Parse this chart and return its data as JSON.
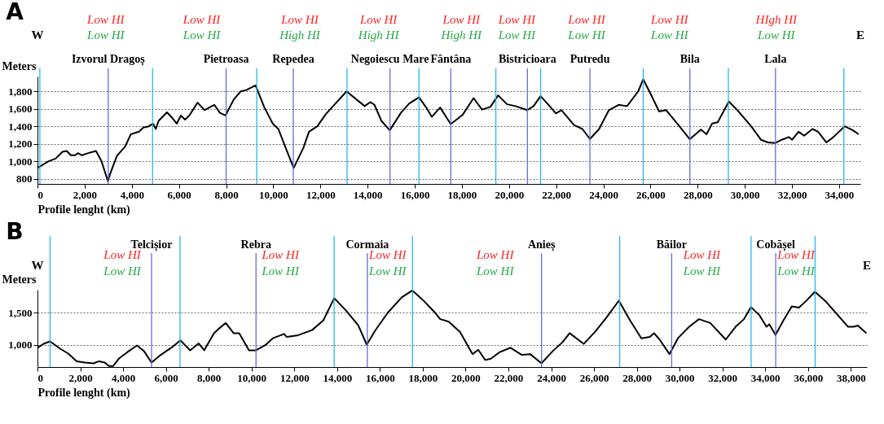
{
  "chart_data": [
    {
      "type": "line",
      "title": "A",
      "xlabel": "Profile lenght (km)",
      "ylabel": "Meters",
      "xlim": [
        0,
        34900
      ],
      "ylim": [
        740,
        1970
      ],
      "xticks": [
        0,
        {
          "value": 2000,
          "label": "2,000"
        },
        {
          "value": 4000,
          "label": "4,000"
        },
        {
          "value": 6000,
          "label": "6,000"
        },
        {
          "value": 8000,
          "label": "8,000"
        },
        {
          "value": 10000,
          "label": "10,000"
        },
        {
          "value": 12000,
          "label": "12,000"
        },
        {
          "value": 14000,
          "label": "14,000"
        },
        {
          "value": 16000,
          "label": "16,000"
        },
        {
          "value": 18000,
          "label": "18,000"
        },
        {
          "value": 20000,
          "label": "20,000"
        },
        {
          "value": 22000,
          "label": "22,000"
        },
        {
          "value": 24000,
          "label": "24,000"
        },
        {
          "value": 26000,
          "label": "26,000"
        },
        {
          "value": 28000,
          "label": "28,000"
        },
        {
          "value": 30000,
          "label": "30,000"
        },
        {
          "value": 32000,
          "label": "32,000"
        },
        {
          "value": 34000,
          "label": "34,000"
        }
      ],
      "yticks": [
        800,
        {
          "value": 1000,
          "label": "1,000"
        },
        {
          "value": 1200,
          "label": "1,200"
        },
        {
          "value": 1400,
          "label": "1,400"
        },
        {
          "value": 1600,
          "label": "1,600"
        },
        {
          "value": 1800,
          "label": "1,800"
        }
      ],
      "grid": "y",
      "x": [
        0,
        470,
        770,
        1060,
        1240,
        1417,
        1594,
        1713,
        1890,
        2067,
        2480,
        2716,
        2988,
        3070,
        3366,
        3720,
        3956,
        4310,
        4487,
        4723,
        4900,
        5019,
        5137,
        5491,
        5728,
        5905,
        6082,
        6260,
        6437,
        6791,
        7086,
        7500,
        7736,
        7972,
        8326,
        8622,
        8858,
        9248,
        9625,
        9980,
        10216,
        10570,
        10865,
        11279,
        11515,
        11870,
        12224,
        12696,
        13110,
        13524,
        13878,
        14114,
        14291,
        14587,
        14941,
        15414,
        15768,
        16181,
        16486,
        16722,
        17077,
        17527,
        18024,
        18497,
        18852,
        19207,
        19538,
        19916,
        20271,
        20768,
        21040,
        21336,
        21691,
        21987,
        22224,
        22756,
        23111,
        23430,
        23821,
        24235,
        24649,
        25004,
        25478,
        25690,
        25951,
        26365,
        26661,
        27134,
        27666,
        28139,
        28376,
        28612,
        28849,
        29322,
        29736,
        30268,
        30682,
        30978,
        31297,
        31569,
        31865,
        32007,
        32279,
        32516,
        32871,
        33107,
        33462,
        33758,
        34231,
        34586,
        34823
      ],
      "series": [
        {
          "color": "#000000",
          "values": [
            923,
            1000,
            1030,
            1108,
            1117,
            1068,
            1068,
            1092,
            1068,
            1086,
            1117,
            1000,
            770,
            846,
            1061,
            1169,
            1308,
            1338,
            1385,
            1400,
            1430,
            1369,
            1462,
            1560,
            1492,
            1430,
            1523,
            1477,
            1523,
            1671,
            1585,
            1646,
            1554,
            1523,
            1708,
            1800,
            1815,
            1868,
            1615,
            1430,
            1369,
            1123,
            923,
            1154,
            1338,
            1400,
            1538,
            1677,
            1800,
            1708,
            1631,
            1677,
            1646,
            1462,
            1354,
            1554,
            1662,
            1732,
            1615,
            1508,
            1615,
            1425,
            1529,
            1723,
            1591,
            1622,
            1754,
            1652,
            1631,
            1585,
            1631,
            1745,
            1640,
            1548,
            1585,
            1415,
            1369,
            1255,
            1369,
            1585,
            1646,
            1631,
            1800,
            1938,
            1800,
            1569,
            1585,
            1431,
            1252,
            1363,
            1308,
            1431,
            1446,
            1683,
            1569,
            1400,
            1246,
            1215,
            1209,
            1246,
            1277,
            1246,
            1338,
            1292,
            1369,
            1338,
            1215,
            1277,
            1400,
            1354,
            1308
          ]
        }
      ],
      "ref_lines": [
        {
          "axis": "x",
          "value": 100,
          "color": "#29b6e8"
        },
        {
          "axis": "x",
          "value": 4880,
          "color": "#29b6e8"
        },
        {
          "axis": "x",
          "value": 9300,
          "color": "#29b6e8"
        },
        {
          "axis": "x",
          "value": 13130,
          "color": "#29b6e8"
        },
        {
          "axis": "x",
          "value": 16180,
          "color": "#29b6e8"
        },
        {
          "axis": "x",
          "value": 19440,
          "color": "#29b6e8"
        },
        {
          "axis": "x",
          "value": 21340,
          "color": "#29b6e8"
        },
        {
          "axis": "x",
          "value": 25690,
          "color": "#29b6e8"
        },
        {
          "axis": "x",
          "value": 29300,
          "color": "#29b6e8"
        },
        {
          "axis": "x",
          "value": 34200,
          "color": "#29b6e8"
        },
        {
          "axis": "x",
          "value": 3000,
          "label": "Izvorul Dragoș",
          "color": "#6a6ad8"
        },
        {
          "axis": "x",
          "value": 8000,
          "label": "Pietroasa",
          "color": "#6a6ad8"
        },
        {
          "axis": "x",
          "value": 10850,
          "label": "Repedea",
          "color": "#6a6ad8"
        },
        {
          "axis": "x",
          "value": 14950,
          "label": "Negoiescu Mare",
          "color": "#6a6ad8"
        },
        {
          "axis": "x",
          "value": 17530,
          "label": "Fântâna",
          "color": "#6a6ad8"
        },
        {
          "axis": "x",
          "value": 20780,
          "label": "Bistricioara",
          "color": "#6a6ad8"
        },
        {
          "axis": "x",
          "value": 23430,
          "label": "Putredu",
          "color": "#6a6ad8"
        },
        {
          "axis": "x",
          "value": 27670,
          "label": "Bila",
          "color": "#6a6ad8"
        },
        {
          "axis": "x",
          "value": 31300,
          "label": "Lala",
          "color": "#6a6ad8"
        }
      ],
      "annotations": [
        "Low HI",
        "Low HI",
        "Low HI",
        "Low HI",
        "Low HI",
        "High HI",
        "Low HI",
        "High HI",
        "Low HI",
        "High HI",
        "Low HI",
        "Low HI",
        "Low HI",
        "Low HI",
        "Low HI",
        "Low HI",
        "HIgh HI",
        "Low HI",
        "W",
        "E"
      ]
    },
    {
      "type": "line",
      "title": "B",
      "xlabel": "Profile lenght (km)",
      "ylabel": "Meters",
      "xlim": [
        0,
        38750
      ],
      "ylim": [
        650,
        1860
      ],
      "xticks": [
        0,
        {
          "value": 2000,
          "label": "2,000"
        },
        {
          "value": 4000,
          "label": "4,000"
        },
        {
          "value": 6000,
          "label": "6,000"
        },
        {
          "value": 8000,
          "label": "8,000"
        },
        {
          "value": 10000,
          "label": "10,000"
        },
        {
          "value": 12000,
          "label": "12,000"
        },
        {
          "value": 14000,
          "label": "14,000"
        },
        {
          "value": 16000,
          "label": "16,000"
        },
        {
          "value": 18000,
          "label": "18,000"
        },
        {
          "value": 20000,
          "label": "20,000"
        },
        {
          "value": 22000,
          "label": "22,000"
        },
        {
          "value": 24000,
          "label": "24,000"
        },
        {
          "value": 26000,
          "label": "26,000"
        },
        {
          "value": 28000,
          "label": "28,000"
        },
        {
          "value": 30000,
          "label": "30,000"
        },
        {
          "value": 32000,
          "label": "32,000"
        },
        {
          "value": 34000,
          "label": "34,000"
        },
        {
          "value": 36000,
          "label": "36,000"
        },
        {
          "value": 38000,
          "label": "38,000"
        }
      ],
      "yticks": [
        {
          "value": 1000,
          "label": "1,000"
        },
        {
          "value": 1500,
          "label": "1,500"
        }
      ],
      "grid": "y",
      "x": [
        0,
        327,
        589,
        1047,
        1440,
        1833,
        2225,
        2618,
        2880,
        3142,
        3338,
        3534,
        3796,
        4189,
        4647,
        4974,
        5328,
        5760,
        6283,
        6676,
        7134,
        7527,
        7789,
        8247,
        8509,
        8797,
        9163,
        9425,
        9884,
        10211,
        10669,
        10996,
        11520,
        11651,
        12174,
        12829,
        13353,
        13864,
        14400,
        14990,
        15383,
        15776,
        16366,
        17017,
        17515,
        18064,
        18522,
        18817,
        19211,
        19737,
        20329,
        20591,
        20920,
        21183,
        21577,
        22102,
        22628,
        23022,
        23548,
        24074,
        24534,
        24862,
        25519,
        26045,
        26570,
        27161,
        27687,
        28213,
        28607,
        28804,
        29067,
        29527,
        29921,
        30446,
        30906,
        31432,
        32155,
        32615,
        33009,
        33338,
        33732,
        34060,
        34192,
        34481,
        34849,
        35243,
        35572,
        35900,
        36321,
        36820,
        37346,
        37872,
        38134,
        38331,
        38725
      ],
      "series": [
        {
          "color": "#000000",
          "values": [
            952,
            1020,
            1052,
            940,
            860,
            740,
            720,
            708,
            740,
            720,
            665,
            665,
            780,
            880,
            988,
            900,
            720,
            840,
            960,
            1068,
            912,
            1020,
            912,
            1180,
            1260,
            1340,
            1180,
            1180,
            912,
            912,
            1000,
            1100,
            1168,
            1120,
            1148,
            1228,
            1380,
            1728,
            1540,
            1300,
            1000,
            1220,
            1500,
            1740,
            1848,
            1680,
            1520,
            1400,
            1360,
            1200,
            852,
            920,
            760,
            780,
            880,
            952,
            840,
            852,
            708,
            900,
            1040,
            1180,
            1012,
            1200,
            1420,
            1688,
            1380,
            1100,
            1120,
            1180,
            1080,
            852,
            1100,
            1280,
            1400,
            1340,
            1080,
            1280,
            1400,
            1588,
            1460,
            1280,
            1320,
            1152,
            1380,
            1600,
            1580,
            1680,
            1828,
            1680,
            1480,
            1280,
            1280,
            1300,
            1180
          ]
        }
      ],
      "ref_lines": [
        {
          "axis": "x",
          "value": 590,
          "color": "#29b6e8"
        },
        {
          "axis": "x",
          "value": 6660,
          "color": "#29b6e8"
        },
        {
          "axis": "x",
          "value": 13860,
          "color": "#29b6e8"
        },
        {
          "axis": "x",
          "value": 17520,
          "color": "#29b6e8"
        },
        {
          "axis": "x",
          "value": 27200,
          "color": "#29b6e8"
        },
        {
          "axis": "x",
          "value": 33340,
          "color": "#29b6e8"
        },
        {
          "axis": "x",
          "value": 36330,
          "color": "#29b6e8"
        },
        {
          "axis": "x",
          "value": 5330,
          "label": "Telcișior",
          "color": "#6a6ad8"
        },
        {
          "axis": "x",
          "value": 10210,
          "label": "Rebra",
          "color": "#6a6ad8"
        },
        {
          "axis": "x",
          "value": 15410,
          "label": "Cormaia",
          "color": "#6a6ad8"
        },
        {
          "axis": "x",
          "value": 23550,
          "label": "Anieș",
          "color": "#6a6ad8"
        },
        {
          "axis": "x",
          "value": 29630,
          "label": "Băilor",
          "color": "#6a6ad8"
        },
        {
          "axis": "x",
          "value": 34490,
          "label": "Cobășel",
          "color": "#6a6ad8"
        }
      ],
      "annotations": [
        "Low HI",
        "Low HI",
        "Low HI",
        "Low HI",
        "Low HI",
        "Low HI",
        "Low HI",
        "Low HI",
        "Low HI",
        "Low HI",
        "Low HI",
        "Low HI",
        "W",
        "E"
      ]
    }
  ]
}
